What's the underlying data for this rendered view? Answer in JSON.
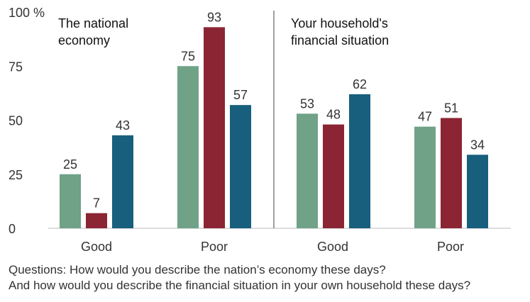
{
  "chart_data": {
    "type": "bar",
    "y_unit": "%",
    "ylim": [
      0,
      100
    ],
    "yticks": [
      0,
      25,
      50,
      75,
      100
    ],
    "grid": false,
    "panels": [
      {
        "title_lines": [
          "The national",
          "economy"
        ],
        "categories": [
          "Good",
          "Poor"
        ],
        "series": [
          {
            "color": "#6fa287",
            "values": [
              25,
              75
            ]
          },
          {
            "color": "#8b2533",
            "values": [
              7,
              93
            ]
          },
          {
            "color": "#175f7d",
            "values": [
              43,
              57
            ]
          }
        ]
      },
      {
        "title_lines": [
          "Your household's",
          "financial situation"
        ],
        "categories": [
          "Good",
          "Poor"
        ],
        "series": [
          {
            "color": "#6fa287",
            "values": [
              53,
              47
            ]
          },
          {
            "color": "#8b2533",
            "values": [
              48,
              51
            ]
          },
          {
            "color": "#175f7d",
            "values": [
              62,
              34
            ]
          }
        ]
      }
    ]
  },
  "footnote": {
    "line1": "Questions: How would you describe the nation’s economy these days?",
    "line2": "And how would you describe the financial situation in your own household these days?"
  }
}
